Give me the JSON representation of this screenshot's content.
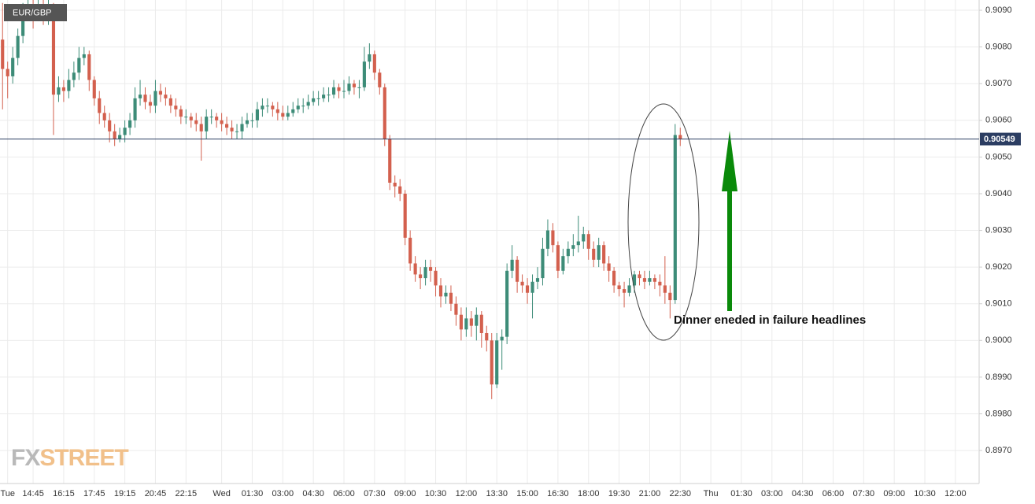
{
  "chart_data": {
    "type": "candlestick",
    "title": "EUR/GBP",
    "categories": [
      null,
      "Tue",
      null,
      null,
      null,
      null,
      "14:45",
      null,
      null,
      null,
      null,
      null,
      "16:15",
      null,
      null,
      null,
      null,
      null,
      "17:45",
      null,
      null,
      null,
      null,
      null,
      "19:15",
      null,
      null,
      null,
      null,
      null,
      "20:45",
      null,
      null,
      null,
      null,
      null,
      "22:15",
      null,
      null,
      null,
      null,
      null,
      null,
      "Wed",
      null,
      null,
      null,
      null,
      null,
      "01:30",
      null,
      null,
      null,
      null,
      null,
      "03:00",
      null,
      null,
      null,
      null,
      null,
      "04:30",
      null,
      null,
      null,
      null,
      null,
      "06:00",
      null,
      null,
      null,
      null,
      null,
      "07:30",
      null,
      null,
      null,
      null,
      null,
      "09:00",
      null,
      null,
      null,
      null,
      null,
      "10:30",
      null,
      null,
      null,
      null,
      null,
      "12:00",
      null,
      null,
      null,
      null,
      null,
      "13:30",
      null,
      null,
      null,
      null,
      null,
      "15:00",
      null,
      null,
      null,
      null,
      null,
      "16:30",
      null,
      null,
      null,
      null,
      null,
      "18:00",
      null,
      null,
      null,
      null,
      null,
      "19:30",
      null,
      null,
      null,
      null,
      null,
      "21:00",
      null,
      null,
      null,
      null,
      null,
      "22:30",
      null,
      null,
      null,
      null,
      null,
      "Thu",
      null,
      null,
      null,
      null,
      null,
      "01:30",
      null,
      null,
      null,
      null,
      null,
      "03:00",
      null,
      null,
      null,
      null,
      null,
      "04:30",
      null,
      null,
      null,
      null,
      null,
      "06:00",
      null,
      null,
      null,
      null,
      null,
      "07:30",
      null,
      null,
      null,
      null,
      null,
      "09:00",
      null,
      null,
      null,
      null,
      null,
      "10:30",
      null,
      null,
      null,
      null,
      null,
      "12:00",
      null,
      null,
      null,
      null
    ],
    "open": [
      0.9082,
      0.9074,
      0.9072,
      0.9077,
      0.9083,
      0.9089,
      0.9091,
      0.9089,
      0.9091,
      0.9088,
      0.909,
      0.9067,
      0.9069,
      0.9068,
      0.9071,
      0.9073,
      0.9077,
      0.9078,
      0.9071,
      0.9066,
      0.9062,
      0.906,
      0.9057,
      0.9055,
      0.9056,
      0.9058,
      0.906,
      0.9066,
      0.9067,
      0.9065,
      0.9064,
      0.9068,
      0.9067,
      0.9066,
      0.9064,
      0.9063,
      0.9061,
      0.9061,
      0.906,
      0.9059,
      0.9057,
      0.9061,
      0.9061,
      0.906,
      0.9059,
      0.9058,
      0.9057,
      0.9057,
      0.9059,
      0.906,
      0.906,
      0.9063,
      0.9064,
      0.9064,
      0.9063,
      0.9062,
      0.9061,
      0.9062,
      0.9063,
      0.9064,
      0.9064,
      0.9065,
      0.9066,
      0.9066,
      0.9067,
      0.9067,
      0.9069,
      0.9068,
      0.9068,
      0.907,
      0.9069,
      0.9069,
      0.9076,
      0.9078,
      0.9073,
      0.9069,
      0.9055,
      0.9043,
      0.9042,
      0.904,
      0.9028,
      0.9021,
      0.9018,
      0.9017,
      0.902,
      0.9019,
      0.9015,
      0.9012,
      0.9013,
      0.901,
      0.9007,
      0.9003,
      0.9006,
      0.9004,
      0.9007,
      0.9002,
      0.9,
      0.8988,
      0.9,
      0.9001,
      0.9019,
      0.9022,
      0.9016,
      0.9015,
      0.9013,
      0.9016,
      0.9017,
      0.9025,
      0.903,
      0.9026,
      0.9019,
      0.9023,
      0.9025,
      0.9026,
      0.9027,
      0.9029,
      0.9025,
      0.9022,
      0.9026,
      0.9021,
      0.9019,
      0.9015,
      0.9014,
      0.9013,
      0.9015,
      0.9018,
      0.9017,
      0.9016,
      0.9017,
      0.9016,
      0.9015,
      0.9013,
      0.9011,
      0.9056,
      null,
      null,
      null,
      null,
      null,
      null,
      null,
      null,
      null,
      null,
      null,
      null,
      null,
      null,
      null,
      null,
      null,
      null,
      null,
      null,
      null,
      null,
      null,
      null,
      null,
      null,
      null,
      null,
      null,
      null,
      null,
      null,
      null,
      null,
      null,
      null,
      null,
      null,
      null,
      null,
      null,
      null,
      null,
      null,
      null,
      null,
      null,
      null,
      null,
      null,
      null,
      null,
      null,
      null,
      null,
      null,
      null,
      null
    ],
    "high": [
      0.9092,
      0.9076,
      0.908,
      0.9085,
      0.9092,
      0.9094,
      0.9093,
      0.9094,
      0.9093,
      0.9093,
      0.9092,
      0.9072,
      0.9071,
      0.9074,
      0.9076,
      0.908,
      0.908,
      0.9079,
      0.9072,
      0.9068,
      0.9064,
      0.9062,
      0.9059,
      0.9058,
      0.906,
      0.9062,
      0.9069,
      0.9071,
      0.9069,
      0.9067,
      0.9071,
      0.907,
      0.9069,
      0.9067,
      0.9066,
      0.9064,
      0.9063,
      0.9062,
      0.9062,
      0.9061,
      0.9063,
      0.9063,
      0.9062,
      0.9062,
      0.9061,
      0.906,
      0.9059,
      0.9061,
      0.9062,
      0.9062,
      0.9065,
      0.9066,
      0.9066,
      0.9065,
      0.9065,
      0.9064,
      0.9064,
      0.9065,
      0.9066,
      0.9066,
      0.9067,
      0.9068,
      0.9068,
      0.9069,
      0.9069,
      0.9071,
      0.907,
      0.9071,
      0.9072,
      0.9071,
      0.9071,
      0.908,
      0.9081,
      0.9079,
      0.9074,
      0.907,
      0.9056,
      0.9045,
      0.9044,
      0.9041,
      0.903,
      0.9023,
      0.902,
      0.9022,
      0.9022,
      0.902,
      0.9017,
      0.9015,
      0.9015,
      0.9012,
      0.9009,
      0.9009,
      0.9008,
      0.9009,
      0.9008,
      0.9004,
      0.9002,
      0.9002,
      0.9003,
      0.9021,
      0.9026,
      0.9023,
      0.9018,
      0.9017,
      0.9018,
      0.902,
      0.9028,
      0.9033,
      0.9032,
      0.9027,
      0.9025,
      0.9027,
      0.9029,
      0.9034,
      0.9031,
      0.903,
      0.9027,
      0.9028,
      0.9027,
      0.9023,
      0.902,
      0.9016,
      0.9016,
      0.9017,
      0.9019,
      0.9019,
      0.9019,
      0.9019,
      0.9018,
      0.9018,
      0.9023,
      0.9015,
      0.9059,
      0.9058,
      null,
      null,
      null,
      null,
      null,
      null,
      null,
      null,
      null,
      null,
      null,
      null,
      null,
      null,
      null,
      null,
      null,
      null,
      null,
      null,
      null,
      null,
      null,
      null,
      null,
      null,
      null,
      null,
      null,
      null,
      null,
      null,
      null,
      null,
      null,
      null,
      null,
      null,
      null,
      null,
      null,
      null,
      null,
      null,
      null,
      null,
      null,
      null,
      null,
      null,
      null,
      null,
      null,
      null,
      null,
      null,
      null,
      null
    ],
    "low": [
      0.9063,
      0.9066,
      0.907,
      0.9075,
      0.9081,
      0.9087,
      0.9085,
      0.9087,
      0.9086,
      0.9086,
      0.9056,
      0.9065,
      0.9065,
      0.9066,
      0.9069,
      0.9071,
      0.9075,
      0.9068,
      0.9064,
      0.9059,
      0.9058,
      0.9054,
      0.9053,
      0.9054,
      0.9054,
      0.9056,
      0.9058,
      0.9064,
      0.9063,
      0.9062,
      0.9062,
      0.9065,
      0.9064,
      0.9062,
      0.9061,
      0.9059,
      0.9059,
      0.9058,
      0.9057,
      0.9049,
      0.9055,
      0.9059,
      0.9058,
      0.9057,
      0.9056,
      0.9055,
      0.9055,
      0.9055,
      0.9058,
      0.9058,
      0.9058,
      0.9061,
      0.9062,
      0.9061,
      0.906,
      0.906,
      0.906,
      0.9061,
      0.9062,
      0.9062,
      0.9063,
      0.9064,
      0.9064,
      0.9065,
      0.9065,
      0.9066,
      0.9066,
      0.9066,
      0.9067,
      0.9067,
      0.9066,
      0.9068,
      0.9074,
      0.9071,
      0.9067,
      0.9053,
      0.9041,
      0.9039,
      0.9038,
      0.9026,
      0.9019,
      0.9016,
      0.9014,
      0.9015,
      0.9016,
      0.9012,
      0.9009,
      0.901,
      0.9008,
      0.9004,
      0.9,
      0.9001,
      0.9001,
      0.9,
      0.8998,
      0.8997,
      0.8984,
      0.8987,
      0.8992,
      0.8999,
      0.9017,
      0.9013,
      0.9013,
      0.901,
      0.9006,
      0.9014,
      0.9015,
      0.9023,
      0.9024,
      0.9017,
      0.9018,
      0.9021,
      0.9023,
      0.9024,
      0.9025,
      0.9022,
      0.902,
      0.902,
      0.9019,
      0.9016,
      0.9013,
      0.9012,
      0.9009,
      0.9012,
      0.9013,
      0.9015,
      0.9014,
      0.9015,
      0.9014,
      0.9012,
      0.901,
      0.9006,
      0.901,
      0.9053,
      null,
      null,
      null,
      null,
      null,
      null,
      null,
      null,
      null,
      null,
      null,
      null,
      null,
      null,
      null,
      null,
      null,
      null,
      null,
      null,
      null,
      null,
      null,
      null,
      null,
      null,
      null,
      null,
      null,
      null,
      null,
      null,
      null,
      null,
      null,
      null,
      null,
      null,
      null,
      null,
      null,
      null,
      null,
      null,
      null,
      null,
      null,
      null,
      null,
      null,
      null,
      null,
      null,
      null,
      null,
      null,
      null,
      null
    ],
    "close": [
      0.9074,
      0.9072,
      0.9077,
      0.9083,
      0.9089,
      0.9091,
      0.9089,
      0.9091,
      0.9088,
      0.909,
      0.9067,
      0.9069,
      0.9068,
      0.9071,
      0.9073,
      0.9077,
      0.9078,
      0.9071,
      0.9066,
      0.9062,
      0.906,
      0.9057,
      0.9055,
      0.9056,
      0.9058,
      0.906,
      0.9066,
      0.9067,
      0.9065,
      0.9064,
      0.9068,
      0.9067,
      0.9066,
      0.9064,
      0.9063,
      0.9061,
      0.9061,
      0.906,
      0.9059,
      0.9057,
      0.9061,
      0.9061,
      0.906,
      0.9059,
      0.9058,
      0.9057,
      0.9057,
      0.9059,
      0.906,
      0.906,
      0.9063,
      0.9064,
      0.9064,
      0.9063,
      0.9062,
      0.9061,
      0.9062,
      0.9063,
      0.9064,
      0.9064,
      0.9065,
      0.9066,
      0.9066,
      0.9067,
      0.9067,
      0.9069,
      0.9068,
      0.9068,
      0.907,
      0.9069,
      0.9069,
      0.9076,
      0.9078,
      0.9073,
      0.9069,
      0.9055,
      0.9043,
      0.9042,
      0.904,
      0.9028,
      0.9021,
      0.9018,
      0.9017,
      0.902,
      0.9019,
      0.9015,
      0.9012,
      0.9013,
      0.901,
      0.9007,
      0.9003,
      0.9006,
      0.9004,
      0.9007,
      0.9002,
      0.9,
      0.8988,
      0.9,
      0.9001,
      0.9019,
      0.9022,
      0.9016,
      0.9015,
      0.9013,
      0.9016,
      0.9017,
      0.9025,
      0.903,
      0.9026,
      0.9019,
      0.9023,
      0.9025,
      0.9026,
      0.9027,
      0.9029,
      0.9025,
      0.9022,
      0.9026,
      0.9021,
      0.9019,
      0.9015,
      0.9014,
      0.9013,
      0.9015,
      0.9018,
      0.9017,
      0.9016,
      0.9017,
      0.9016,
      0.9015,
      0.9013,
      0.9011,
      0.9056,
      0.9055,
      null,
      null,
      null,
      null,
      null,
      null,
      null,
      null,
      null,
      null,
      null,
      null,
      null,
      null,
      null,
      null,
      null,
      null,
      null,
      null,
      null,
      null,
      null,
      null,
      null,
      null,
      null,
      null,
      null,
      null,
      null,
      null,
      null,
      null,
      null,
      null,
      null,
      null,
      null,
      null,
      null,
      null,
      null,
      null,
      null,
      null,
      null,
      null,
      null,
      null,
      null,
      null,
      null,
      null,
      null,
      null,
      null,
      null
    ],
    "up_color": "#3d8c78",
    "down_color": "#d3604e",
    "ylim": [
      0.8961,
      0.90928
    ],
    "yticks": [
      {
        "value": 0.897,
        "label": "0.8970"
      },
      {
        "value": 0.898,
        "label": "0.8980"
      },
      {
        "value": 0.899,
        "label": "0.8990"
      },
      {
        "value": 0.9,
        "label": "0.9000"
      },
      {
        "value": 0.901,
        "label": "0.9010"
      },
      {
        "value": 0.902,
        "label": "0.9020"
      },
      {
        "value": 0.903,
        "label": "0.9030"
      },
      {
        "value": 0.904,
        "label": "0.9040"
      },
      {
        "value": 0.905,
        "label": "0.9050"
      },
      {
        "value": 0.906,
        "label": "0.9060"
      },
      {
        "value": 0.907,
        "label": "0.9070"
      },
      {
        "value": 0.908,
        "label": "0.9080"
      },
      {
        "value": 0.909,
        "label": "0.9090"
      }
    ],
    "grid": true,
    "last_price": 0.90549,
    "last_price_color": "#2b3d62",
    "annotation": "Dinner eneded in failure headlines",
    "logo_fx": "FX",
    "logo_street": "STREET"
  }
}
